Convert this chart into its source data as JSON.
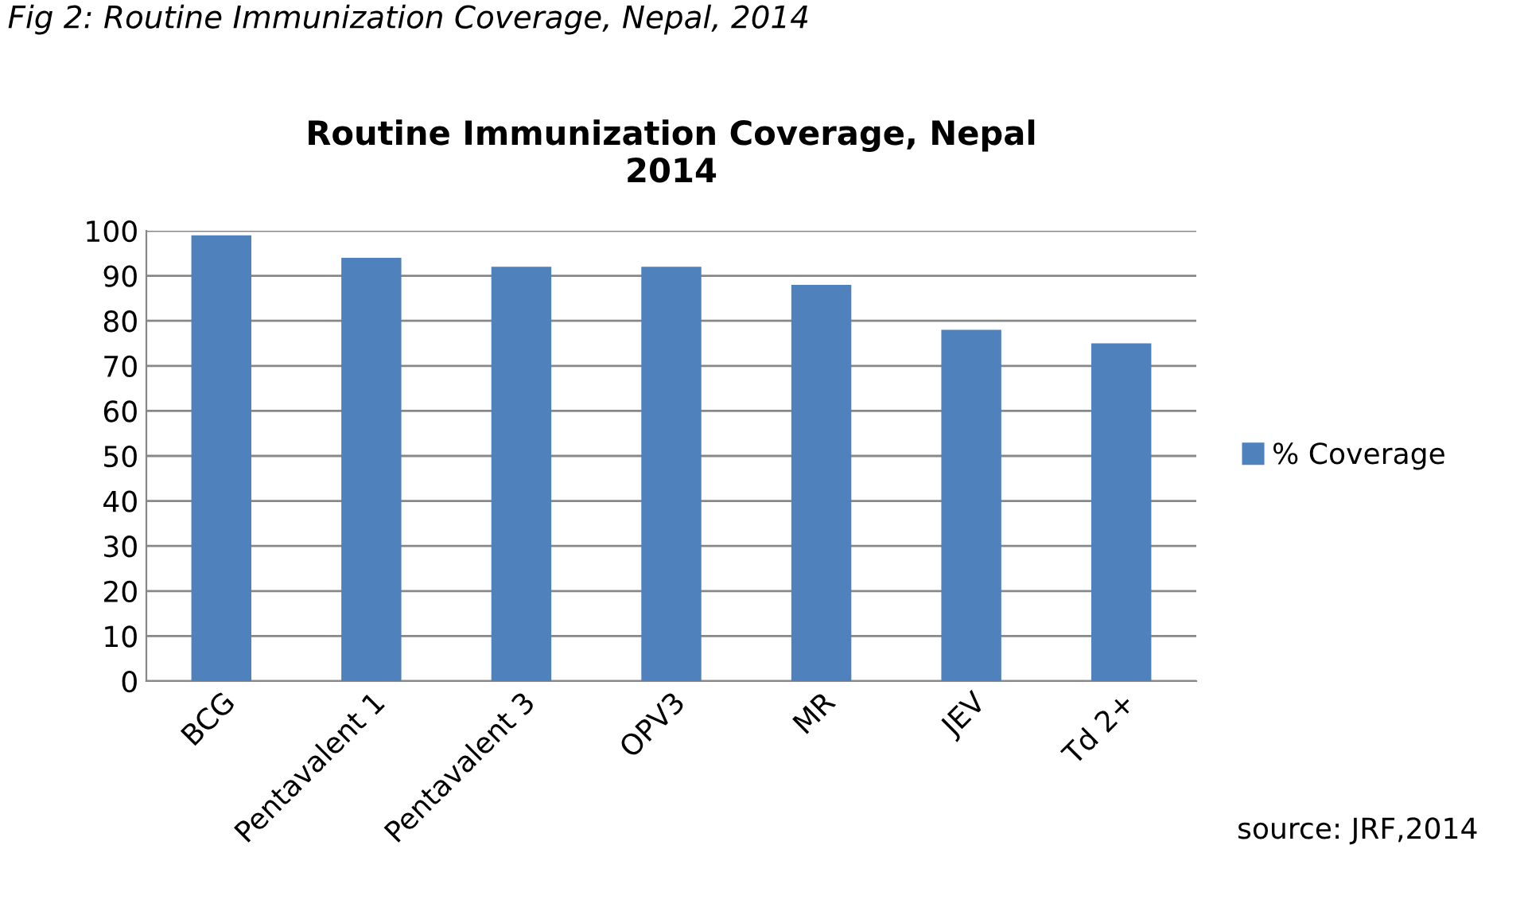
{
  "chart_data": {
    "type": "bar",
    "title": "Routine Immunization Coverage, Nepal\n2014",
    "categories": [
      "BCG",
      "Pentavalent 1",
      "Pentavalent 3",
      "OPV3",
      "MR",
      "JEV",
      "Td 2+"
    ],
    "series": [
      {
        "name": "% Coverage",
        "color": "#4f81bd",
        "values": [
          99,
          94,
          92,
          92,
          88,
          78,
          75
        ]
      }
    ],
    "ylim": [
      0,
      100
    ],
    "yticks": [
      0,
      10,
      20,
      30,
      40,
      50,
      60,
      70,
      80,
      90,
      100
    ],
    "grid": "y",
    "legend": "right",
    "annotations": [
      "Fig 2: Routine Immunization Coverage, Nepal, 2014",
      {
        "text": "source: JRF,2014"
      }
    ]
  }
}
